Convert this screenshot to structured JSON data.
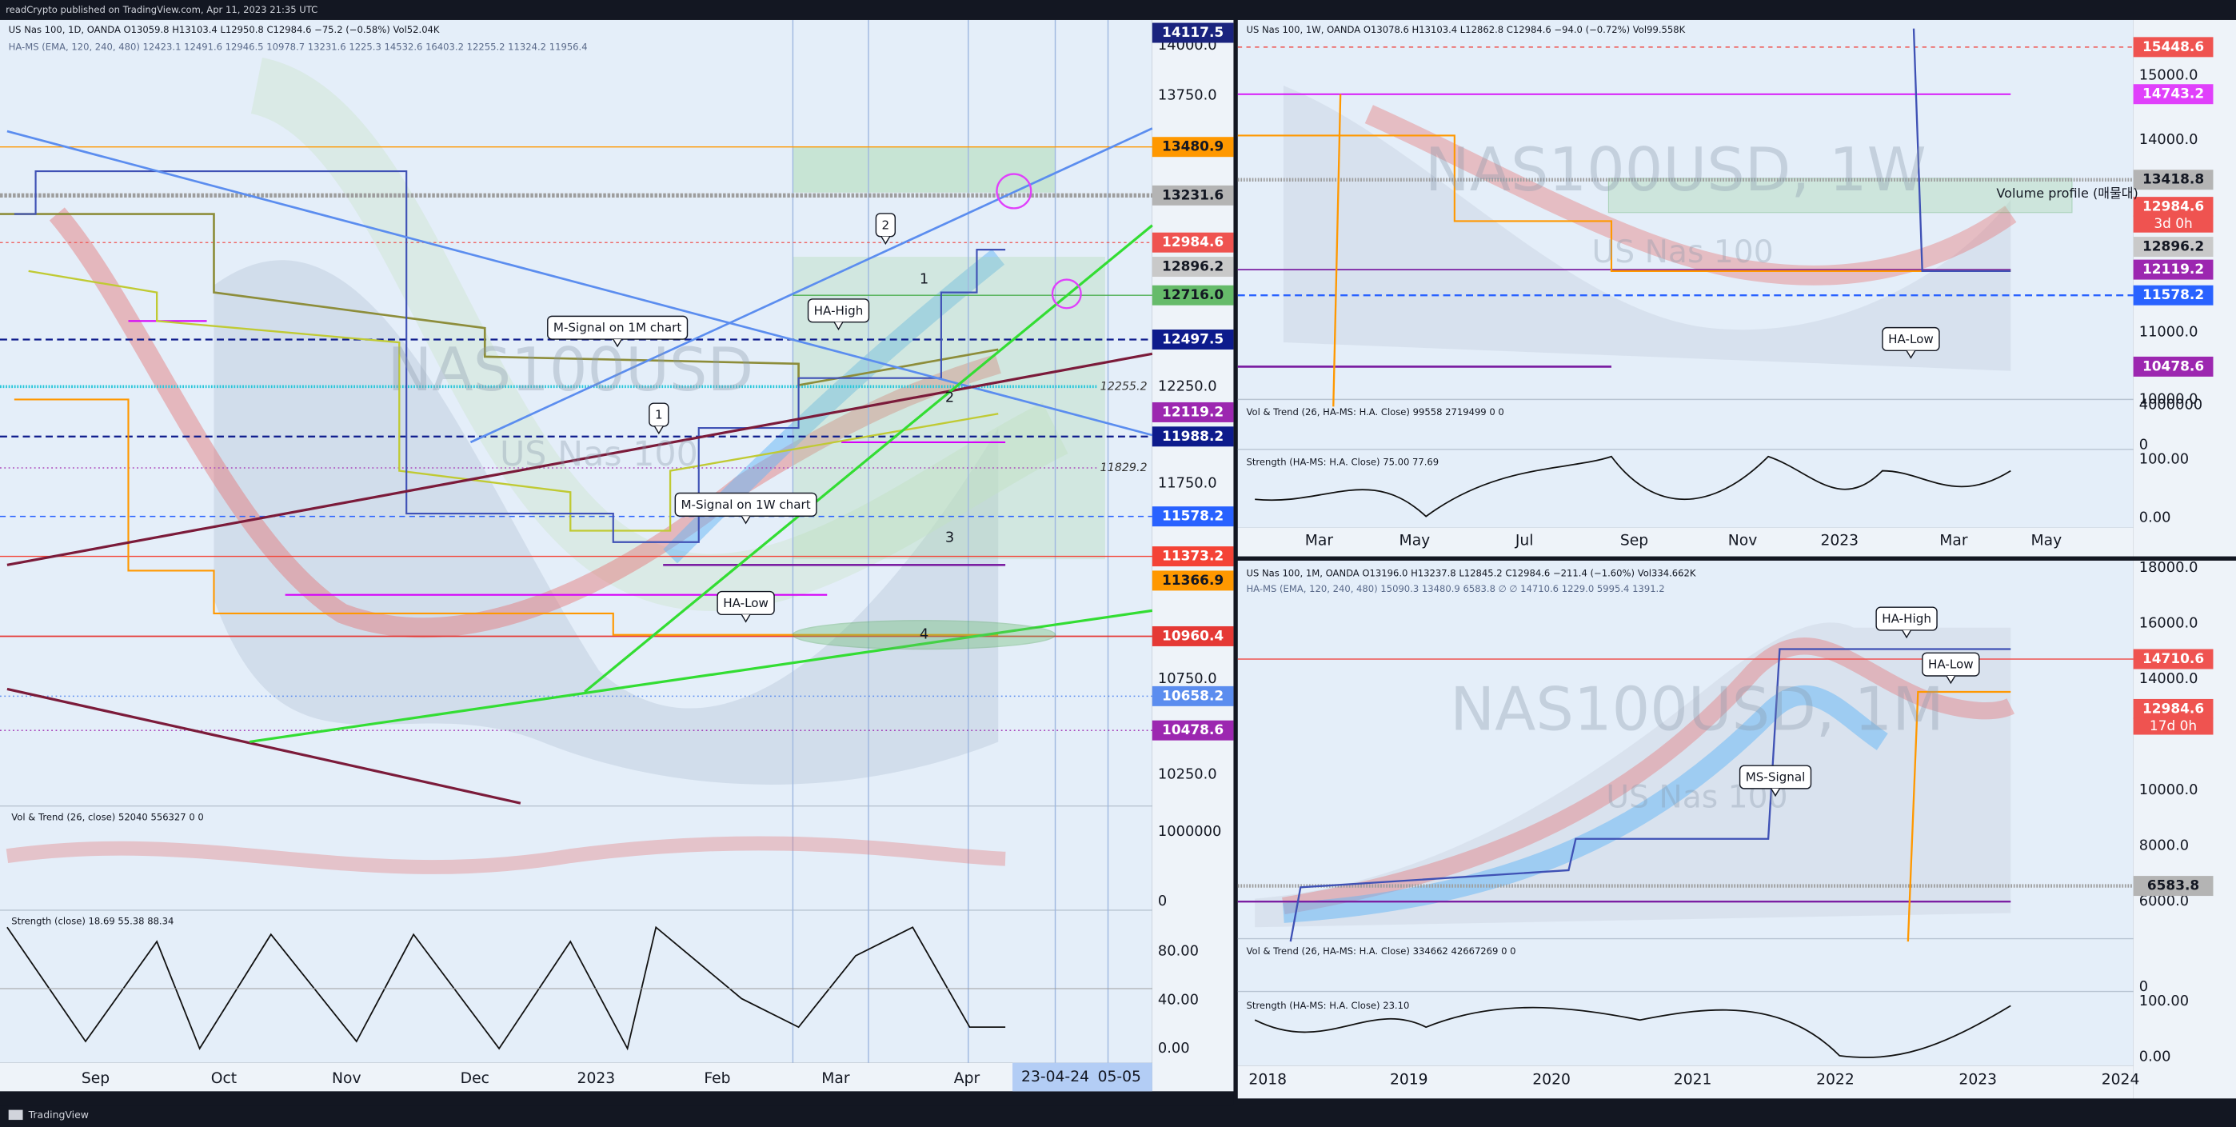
{
  "header": "readCrypto published on TradingView.com, Apr 11, 2023 21:35 UTC",
  "footer": "TradingView",
  "panels": [
    {
      "legend": [
        "US Nas 100, 1D, OANDA O13059.8 H13103.4 L12950.8 C12984.6 −75.2 (−0.58%) Vol52.04K",
        "HA-MS (EMA, 120, 240, 480) 12423.1 12491.6 12946.5 10978.7 13231.6 1225.3 14532.6 16403.2 12255.2 11324.2 11956.4"
      ],
      "watermark": [
        "NAS100USD",
        "US Nas 100"
      ],
      "price_axis": [
        "14000.0",
        "13750.0",
        "12250.0",
        "11750.0",
        "10750.0",
        "10250.0"
      ],
      "price_tags": [
        "14117.5",
        "13480.9",
        "13231.6",
        "12984.6",
        "12896.2",
        "12716.0",
        "12497.5",
        "12119.2",
        "11988.2",
        "11578.2",
        "11373.2",
        "11366.9",
        "10960.4",
        "10658.2",
        "10478.6"
      ],
      "annotations": [
        "2",
        "1",
        "HA-High",
        "M-Signal on 1M chart",
        "1",
        "2",
        "M-Signal on 1W chart",
        "3",
        "HA-Low",
        "4",
        "12255.2",
        "11829.2"
      ],
      "volume": {
        "legend": "Vol & Trend (26, close) 52040 556327 0 0",
        "axis": [
          "1000000",
          "0"
        ]
      },
      "strength": {
        "legend": "Strength (close) 18.69 55.38 88.34",
        "axis": [
          "80.00",
          "40.00",
          "0.00"
        ]
      },
      "time_axis": [
        "Sep",
        "Oct",
        "Nov",
        "Dec",
        "2023",
        "Feb",
        "Mar",
        "Apr"
      ],
      "cursor_dates": [
        "23-04-24",
        "05-05"
      ]
    },
    {
      "legend": [
        "US Nas 100, 1W, OANDA O13078.6 H13103.4 L12862.8 C12984.6 −94.0 (−0.72%) Vol99.558K"
      ],
      "watermark": [
        "NAS100USD, 1W",
        "US Nas 100"
      ],
      "price_axis": [
        "15000.0",
        "14000.0",
        "11000.0",
        "10000.0"
      ],
      "price_tags": [
        "15448.6",
        "14743.2",
        "13418.8",
        "12984.6",
        "12896.2",
        "12119.2",
        "11578.2",
        "10478.6"
      ],
      "countdown": "3d 0h",
      "annotations": [
        "Volume profile (매물대)",
        "HA-Low"
      ],
      "volume": {
        "legend": "Vol & Trend (26, HA-MS: H.A. Close) 99558 2719499 0 0",
        "axis": [
          "4000000",
          "0"
        ]
      },
      "strength": {
        "legend": "Strength (HA-MS: H.A. Close) 75.00 77.69",
        "axis": [
          "100.00",
          "0.00"
        ]
      },
      "time_axis": [
        "Mar",
        "May",
        "Jul",
        "Sep",
        "Nov",
        "2023",
        "Mar",
        "May"
      ]
    },
    {
      "legend": [
        "US Nas 100, 1M, OANDA O13196.0 H13237.8 L12845.2 C12984.6 −211.4 (−1.60%) Vol334.662K",
        "HA-MS (EMA, 120, 240, 480) 15090.3 13480.9 6583.8 ∅ ∅ 14710.6 1229.0 5995.4 1391.2"
      ],
      "watermark": [
        "NAS100USD, 1M",
        "US Nas 100"
      ],
      "price_axis": [
        "18000.0",
        "16000.0",
        "14000.0",
        "10000.0",
        "8000.0",
        "6000.0"
      ],
      "price_tags": [
        "14710.6",
        "12984.6",
        "6583.8"
      ],
      "countdown": "17d 0h",
      "annotations": [
        "HA-High",
        "HA-Low",
        "MS-Signal"
      ],
      "volume": {
        "legend": "Vol & Trend (26, HA-MS: H.A. Close) 334662 42667269 0 0",
        "axis": [
          "0"
        ]
      },
      "strength": {
        "legend": "Strength (HA-MS: H.A. Close) 23.10",
        "axis": [
          "100.00",
          "0.00"
        ]
      },
      "time_axis": [
        "2018",
        "2019",
        "2020",
        "2021",
        "2022",
        "2023",
        "2024"
      ]
    }
  ]
}
